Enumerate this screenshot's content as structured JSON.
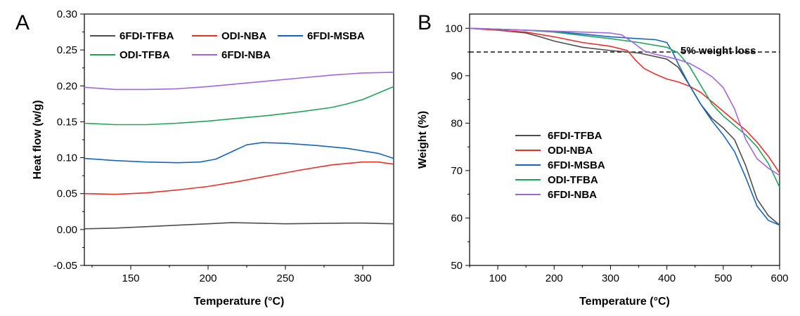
{
  "chart_data": [
    {
      "panel": "A",
      "type": "line",
      "title": "",
      "xlabel": "Temperature (°C)",
      "ylabel": "Heat flow (w/g)",
      "xlim": [
        120,
        320
      ],
      "ylim": [
        -0.05,
        0.3
      ],
      "xticks": [
        150,
        200,
        250,
        300
      ],
      "yticks": [
        -0.05,
        0.0,
        0.05,
        0.1,
        0.15,
        0.2,
        0.25,
        0.3
      ],
      "ytick_labels": [
        "-0.05",
        "0.00",
        "0.05",
        "0.10",
        "0.15",
        "0.20",
        "0.25",
        "0.30"
      ],
      "grid": false,
      "legend_position": "top-left",
      "legend_columns": 3,
      "series": [
        {
          "name": "6FDI-TFBA",
          "color": "#4d4d4d",
          "x": [
            120,
            140,
            160,
            180,
            200,
            215,
            230,
            250,
            270,
            290,
            300,
            320
          ],
          "y": [
            0.001,
            0.002,
            0.004,
            0.006,
            0.008,
            0.0095,
            0.009,
            0.008,
            0.0085,
            0.009,
            0.009,
            0.008
          ]
        },
        {
          "name": "ODI-NBA",
          "color": "#e8302a",
          "x": [
            120,
            140,
            160,
            180,
            200,
            220,
            240,
            260,
            280,
            300,
            310,
            320
          ],
          "y": [
            0.05,
            0.049,
            0.051,
            0.055,
            0.06,
            0.067,
            0.075,
            0.083,
            0.09,
            0.094,
            0.094,
            0.091
          ]
        },
        {
          "name": "6FDI-MSBA",
          "color": "#1565c0",
          "x": [
            120,
            140,
            160,
            180,
            195,
            205,
            215,
            225,
            235,
            250,
            270,
            290,
            310,
            320
          ],
          "y": [
            0.099,
            0.096,
            0.094,
            0.093,
            0.094,
            0.098,
            0.108,
            0.118,
            0.121,
            0.12,
            0.117,
            0.113,
            0.106,
            0.099
          ]
        },
        {
          "name": "ODI-TFBA",
          "color": "#23a35a",
          "x": [
            120,
            140,
            160,
            180,
            200,
            220,
            240,
            260,
            280,
            290,
            300,
            310,
            320
          ],
          "y": [
            0.148,
            0.146,
            0.146,
            0.148,
            0.151,
            0.155,
            0.159,
            0.164,
            0.17,
            0.175,
            0.181,
            0.19,
            0.199
          ]
        },
        {
          "name": "6FDI-NBA",
          "color": "#a066e0",
          "x": [
            120,
            140,
            160,
            180,
            200,
            220,
            240,
            260,
            280,
            300,
            320
          ],
          "y": [
            0.198,
            0.195,
            0.195,
            0.196,
            0.199,
            0.203,
            0.207,
            0.211,
            0.215,
            0.218,
            0.219
          ]
        }
      ]
    },
    {
      "panel": "B",
      "type": "line",
      "title": "",
      "xlabel": "Temperature (°C)",
      "ylabel": "Weight (%)",
      "xlim": [
        50,
        600
      ],
      "ylim": [
        50,
        103
      ],
      "xticks": [
        100,
        200,
        300,
        400,
        500,
        600
      ],
      "yticks": [
        50,
        60,
        70,
        80,
        90,
        100
      ],
      "ytick_labels": [
        "50",
        "60",
        "70",
        "80",
        "90",
        "100"
      ],
      "grid": false,
      "legend_position": "bottom-left",
      "legend_columns": 1,
      "reference_line": {
        "y": 95,
        "style": "dashed",
        "label": "5% weight loss"
      },
      "series": [
        {
          "name": "6FDI-TFBA",
          "color": "#4d4d4d",
          "x": [
            50,
            100,
            150,
            175,
            200,
            250,
            300,
            350,
            400,
            420,
            440,
            460,
            480,
            500,
            520,
            540,
            560,
            580,
            600
          ],
          "y": [
            100,
            99.6,
            99.0,
            98.2,
            97.3,
            96.0,
            95.3,
            94.8,
            93.5,
            91.8,
            88.0,
            84.0,
            81.0,
            79.0,
            76.5,
            71.0,
            64.0,
            60.5,
            58.5
          ]
        },
        {
          "name": "ODI-NBA",
          "color": "#e8302a",
          "x": [
            50,
            100,
            150,
            200,
            250,
            300,
            330,
            345,
            360,
            380,
            400,
            420,
            440,
            460,
            480,
            500,
            520,
            540,
            560,
            580,
            600
          ],
          "y": [
            100,
            99.6,
            99.2,
            98.2,
            97.0,
            96.2,
            95.3,
            93.2,
            91.5,
            90.3,
            89.3,
            88.7,
            87.8,
            86.5,
            84.5,
            82.5,
            80.5,
            78.5,
            76.0,
            73.0,
            69.5
          ]
        },
        {
          "name": "6FDI-MSBA",
          "color": "#1565c0",
          "x": [
            50,
            100,
            150,
            200,
            250,
            300,
            350,
            380,
            400,
            410,
            420,
            440,
            460,
            480,
            500,
            520,
            540,
            560,
            580,
            600
          ],
          "y": [
            100,
            99.8,
            99.6,
            99.3,
            98.8,
            98.2,
            97.8,
            97.6,
            97.0,
            95.0,
            92.5,
            88.0,
            84.0,
            80.5,
            77.5,
            74.0,
            68.5,
            62.5,
            59.5,
            58.5
          ]
        },
        {
          "name": "ODI-TFBA",
          "color": "#23a35a",
          "x": [
            50,
            100,
            150,
            200,
            250,
            300,
            350,
            400,
            420,
            440,
            460,
            480,
            500,
            520,
            540,
            560,
            580,
            600
          ],
          "y": [
            100,
            99.8,
            99.6,
            99.2,
            98.5,
            97.8,
            97.0,
            96.0,
            94.8,
            92.0,
            88.0,
            84.0,
            81.5,
            79.5,
            77.5,
            75.0,
            71.5,
            66.5
          ]
        },
        {
          "name": "6FDI-NBA",
          "color": "#a066e0",
          "x": [
            50,
            100,
            150,
            200,
            250,
            300,
            320,
            340,
            360,
            380,
            400,
            420,
            440,
            460,
            480,
            500,
            520,
            540,
            560,
            580,
            600
          ],
          "y": [
            100,
            99.8,
            99.6,
            99.4,
            99.2,
            99.0,
            98.6,
            97.0,
            95.2,
            94.5,
            94.0,
            93.4,
            92.6,
            91.3,
            89.8,
            87.5,
            83.0,
            76.5,
            72.5,
            70.5,
            69.0
          ]
        }
      ]
    }
  ]
}
